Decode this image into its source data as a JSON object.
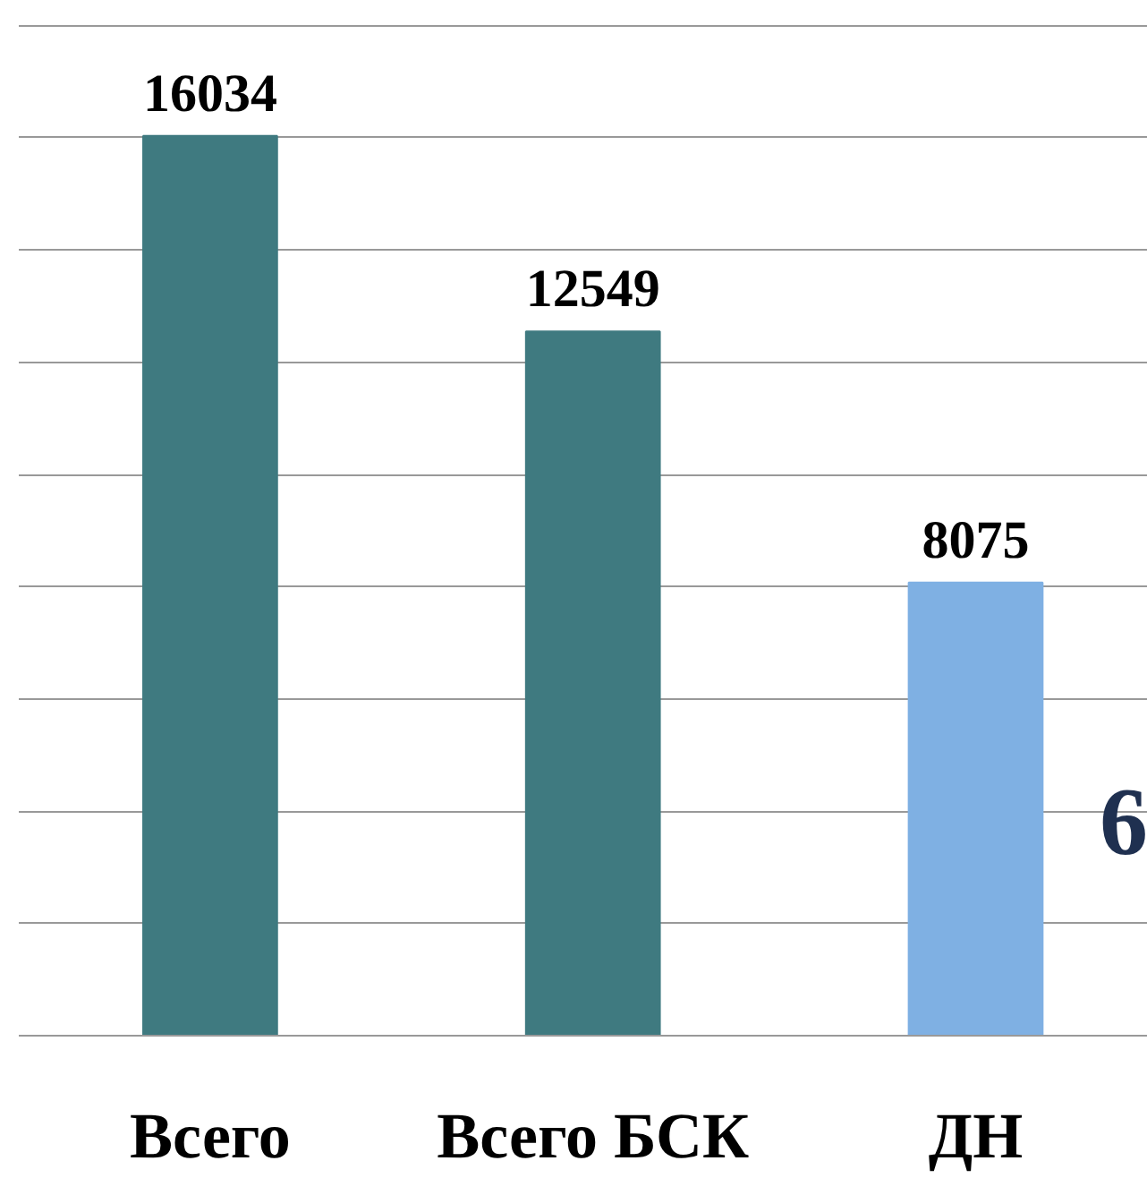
{
  "chart_data": {
    "type": "bar",
    "categories": [
      "Всего",
      "Всего БСК",
      "ДН"
    ],
    "values": [
      16034,
      12549,
      8075
    ],
    "colors": [
      "#3f7a80",
      "#3f7a80",
      "#7fb0e3"
    ],
    "data_labels": true,
    "yticks": [
      {
        "value": 0,
        "label": null
      },
      {
        "value": 2000,
        "label": null
      },
      {
        "value": 4000,
        "label": null
      },
      {
        "value": 6000,
        "label": null
      },
      {
        "value": 8000,
        "label": null
      },
      {
        "value": 10000,
        "label": null
      },
      {
        "value": 12000,
        "label": null
      },
      {
        "value": 14000,
        "label": null
      },
      {
        "value": 16000,
        "label": null
      },
      {
        "value": 18000,
        "label": null
      }
    ],
    "tick_labels": "x",
    "grid": "y",
    "annotations": [
      "6"
    ]
  }
}
